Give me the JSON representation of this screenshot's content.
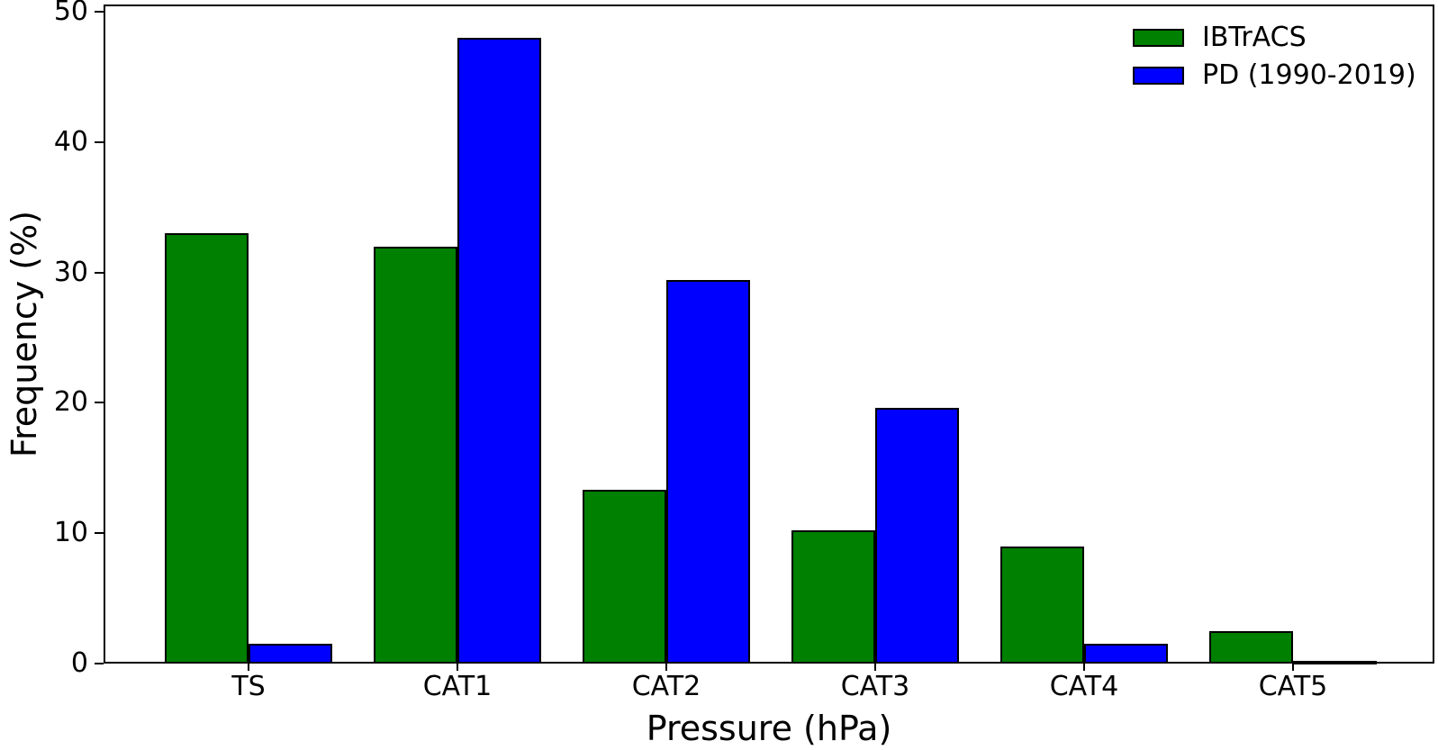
{
  "chart_data": {
    "type": "bar",
    "categories": [
      "TS",
      "CAT1",
      "CAT2",
      "CAT3",
      "CAT4",
      "CAT5"
    ],
    "series": [
      {
        "name": "IBTrACS",
        "color": "#008000",
        "values": [
          33.0,
          32.0,
          13.3,
          10.2,
          9.0,
          2.5
        ]
      },
      {
        "name": "PD (1990-2019)",
        "color": "#0000ff",
        "values": [
          1.5,
          48.0,
          29.4,
          19.6,
          1.5,
          0.1
        ]
      }
    ],
    "title": "",
    "xlabel": "Pressure (hPa)",
    "ylabel": "Frequency (%)",
    "ylim": [
      0,
      50.55
    ],
    "yticks": [
      0,
      10,
      20,
      30,
      40,
      50
    ],
    "grid": false,
    "legend_position": "upper right",
    "bar_edge_color": "#000000",
    "background_color": "#ffffff",
    "layout_hint": "grouped bars, two series per category, full box spines, outward ticks"
  }
}
